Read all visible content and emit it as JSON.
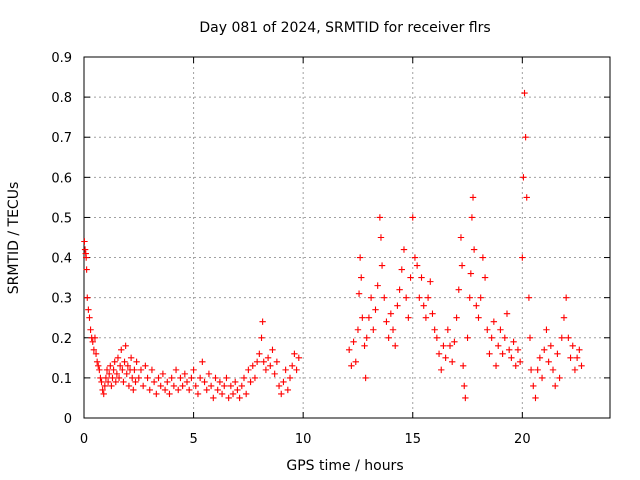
{
  "chart_data": {
    "type": "scatter",
    "title": "Day 081 of 2024, SRMTID for receiver flrs",
    "xlabel": "GPS time / hours",
    "ylabel": "SRMTID / TECUs",
    "xlim": [
      0,
      24
    ],
    "ylim": [
      0,
      0.9
    ],
    "xticks": [
      0,
      5,
      10,
      15,
      20
    ],
    "yticks": [
      0,
      0.1,
      0.2,
      0.3,
      0.4,
      0.5,
      0.6,
      0.7,
      0.8,
      0.9
    ],
    "xtick_labels": [
      "0",
      "5",
      "10",
      "15",
      "20"
    ],
    "ytick_labels": [
      "0",
      "0.1",
      "0.2",
      "0.3",
      "0.4",
      "0.5",
      "0.6",
      "0.7",
      "0.8",
      "0.9"
    ],
    "grid": true,
    "marker": "+",
    "color": "#ff0000",
    "series": [
      {
        "name": "SRMTID",
        "points": [
          [
            0.02,
            0.44
          ],
          [
            0.05,
            0.42
          ],
          [
            0.08,
            0.41
          ],
          [
            0.1,
            0.4
          ],
          [
            0.12,
            0.37
          ],
          [
            0.15,
            0.3
          ],
          [
            0.2,
            0.27
          ],
          [
            0.25,
            0.25
          ],
          [
            0.3,
            0.22
          ],
          [
            0.35,
            0.2
          ],
          [
            0.4,
            0.19
          ],
          [
            0.45,
            0.17
          ],
          [
            0.5,
            0.2
          ],
          [
            0.55,
            0.16
          ],
          [
            0.6,
            0.14
          ],
          [
            0.65,
            0.13
          ],
          [
            0.7,
            0.12
          ],
          [
            0.75,
            0.1
          ],
          [
            0.8,
            0.09
          ],
          [
            0.85,
            0.07
          ],
          [
            0.9,
            0.06
          ],
          [
            0.95,
            0.08
          ],
          [
            1.0,
            0.1
          ],
          [
            1.05,
            0.12
          ],
          [
            1.1,
            0.09
          ],
          [
            1.15,
            0.11
          ],
          [
            1.2,
            0.13
          ],
          [
            1.25,
            0.08
          ],
          [
            1.3,
            0.1
          ],
          [
            1.35,
            0.12
          ],
          [
            1.4,
            0.14
          ],
          [
            1.45,
            0.09
          ],
          [
            1.5,
            0.11
          ],
          [
            1.55,
            0.15
          ],
          [
            1.6,
            0.1
          ],
          [
            1.65,
            0.13
          ],
          [
            1.7,
            0.17
          ],
          [
            1.75,
            0.12
          ],
          [
            1.8,
            0.09
          ],
          [
            1.85,
            0.14
          ],
          [
            1.9,
            0.18
          ],
          [
            1.95,
            0.11
          ],
          [
            2.0,
            0.13
          ],
          [
            2.05,
            0.08
          ],
          [
            2.1,
            0.12
          ],
          [
            2.15,
            0.15
          ],
          [
            2.2,
            0.1
          ],
          [
            2.25,
            0.07
          ],
          [
            2.3,
            0.12
          ],
          [
            2.35,
            0.09
          ],
          [
            2.4,
            0.14
          ],
          [
            2.5,
            0.1
          ],
          [
            2.6,
            0.12
          ],
          [
            2.7,
            0.08
          ],
          [
            2.8,
            0.13
          ],
          [
            2.9,
            0.1
          ],
          [
            3.0,
            0.07
          ],
          [
            3.1,
            0.12
          ],
          [
            3.2,
            0.09
          ],
          [
            3.3,
            0.06
          ],
          [
            3.4,
            0.1
          ],
          [
            3.5,
            0.08
          ],
          [
            3.6,
            0.11
          ],
          [
            3.7,
            0.07
          ],
          [
            3.8,
            0.09
          ],
          [
            3.9,
            0.06
          ],
          [
            4.0,
            0.1
          ],
          [
            4.1,
            0.08
          ],
          [
            4.2,
            0.12
          ],
          [
            4.3,
            0.07
          ],
          [
            4.4,
            0.1
          ],
          [
            4.5,
            0.08
          ],
          [
            4.6,
            0.11
          ],
          [
            4.7,
            0.09
          ],
          [
            4.8,
            0.07
          ],
          [
            4.9,
            0.1
          ],
          [
            5.0,
            0.12
          ],
          [
            5.1,
            0.08
          ],
          [
            5.2,
            0.06
          ],
          [
            5.3,
            0.1
          ],
          [
            5.4,
            0.14
          ],
          [
            5.5,
            0.09
          ],
          [
            5.6,
            0.07
          ],
          [
            5.7,
            0.11
          ],
          [
            5.8,
            0.08
          ],
          [
            5.9,
            0.05
          ],
          [
            6.0,
            0.1
          ],
          [
            6.1,
            0.07
          ],
          [
            6.2,
            0.09
          ],
          [
            6.3,
            0.06
          ],
          [
            6.4,
            0.08
          ],
          [
            6.5,
            0.1
          ],
          [
            6.6,
            0.05
          ],
          [
            6.7,
            0.08
          ],
          [
            6.8,
            0.06
          ],
          [
            6.9,
            0.09
          ],
          [
            7.0,
            0.07
          ],
          [
            7.1,
            0.05
          ],
          [
            7.2,
            0.08
          ],
          [
            7.3,
            0.1
          ],
          [
            7.4,
            0.06
          ],
          [
            7.5,
            0.12
          ],
          [
            7.6,
            0.09
          ],
          [
            7.7,
            0.13
          ],
          [
            7.8,
            0.1
          ],
          [
            7.9,
            0.14
          ],
          [
            8.0,
            0.16
          ],
          [
            8.1,
            0.2
          ],
          [
            8.15,
            0.24
          ],
          [
            8.2,
            0.14
          ],
          [
            8.3,
            0.12
          ],
          [
            8.4,
            0.15
          ],
          [
            8.5,
            0.13
          ],
          [
            8.6,
            0.17
          ],
          [
            8.7,
            0.11
          ],
          [
            8.8,
            0.14
          ],
          [
            8.9,
            0.08
          ],
          [
            9.0,
            0.06
          ],
          [
            9.1,
            0.09
          ],
          [
            9.2,
            0.12
          ],
          [
            9.3,
            0.07
          ],
          [
            9.4,
            0.1
          ],
          [
            9.5,
            0.13
          ],
          [
            9.6,
            0.16
          ],
          [
            9.7,
            0.12
          ],
          [
            9.8,
            0.15
          ],
          [
            12.1,
            0.17
          ],
          [
            12.2,
            0.13
          ],
          [
            12.3,
            0.19
          ],
          [
            12.4,
            0.14
          ],
          [
            12.5,
            0.22
          ],
          [
            12.55,
            0.31
          ],
          [
            12.6,
            0.4
          ],
          [
            12.65,
            0.35
          ],
          [
            12.7,
            0.25
          ],
          [
            12.8,
            0.18
          ],
          [
            12.85,
            0.1
          ],
          [
            12.9,
            0.2
          ],
          [
            13.0,
            0.25
          ],
          [
            13.1,
            0.3
          ],
          [
            13.2,
            0.22
          ],
          [
            13.3,
            0.27
          ],
          [
            13.4,
            0.33
          ],
          [
            13.5,
            0.5
          ],
          [
            13.55,
            0.45
          ],
          [
            13.6,
            0.38
          ],
          [
            13.7,
            0.3
          ],
          [
            13.8,
            0.24
          ],
          [
            13.9,
            0.2
          ],
          [
            14.0,
            0.26
          ],
          [
            14.1,
            0.22
          ],
          [
            14.2,
            0.18
          ],
          [
            14.3,
            0.28
          ],
          [
            14.4,
            0.32
          ],
          [
            14.5,
            0.37
          ],
          [
            14.6,
            0.42
          ],
          [
            14.7,
            0.3
          ],
          [
            14.8,
            0.25
          ],
          [
            14.9,
            0.35
          ],
          [
            15.0,
            0.5
          ],
          [
            15.1,
            0.4
          ],
          [
            15.2,
            0.38
          ],
          [
            15.3,
            0.3
          ],
          [
            15.4,
            0.35
          ],
          [
            15.5,
            0.28
          ],
          [
            15.6,
            0.25
          ],
          [
            15.7,
            0.3
          ],
          [
            15.8,
            0.34
          ],
          [
            15.9,
            0.26
          ],
          [
            16.0,
            0.22
          ],
          [
            16.1,
            0.2
          ],
          [
            16.2,
            0.16
          ],
          [
            16.3,
            0.12
          ],
          [
            16.4,
            0.18
          ],
          [
            16.5,
            0.15
          ],
          [
            16.6,
            0.22
          ],
          [
            16.7,
            0.18
          ],
          [
            16.8,
            0.14
          ],
          [
            16.9,
            0.19
          ],
          [
            17.0,
            0.25
          ],
          [
            17.1,
            0.32
          ],
          [
            17.2,
            0.45
          ],
          [
            17.25,
            0.38
          ],
          [
            17.3,
            0.13
          ],
          [
            17.35,
            0.08
          ],
          [
            17.4,
            0.05
          ],
          [
            17.5,
            0.2
          ],
          [
            17.6,
            0.3
          ],
          [
            17.65,
            0.36
          ],
          [
            17.7,
            0.5
          ],
          [
            17.75,
            0.55
          ],
          [
            17.8,
            0.42
          ],
          [
            17.9,
            0.28
          ],
          [
            18.0,
            0.25
          ],
          [
            18.1,
            0.3
          ],
          [
            18.2,
            0.4
          ],
          [
            18.3,
            0.35
          ],
          [
            18.4,
            0.22
          ],
          [
            18.5,
            0.16
          ],
          [
            18.6,
            0.2
          ],
          [
            18.7,
            0.24
          ],
          [
            18.8,
            0.13
          ],
          [
            18.9,
            0.18
          ],
          [
            19.0,
            0.22
          ],
          [
            19.1,
            0.16
          ],
          [
            19.2,
            0.2
          ],
          [
            19.3,
            0.26
          ],
          [
            19.4,
            0.17
          ],
          [
            19.5,
            0.15
          ],
          [
            19.6,
            0.19
          ],
          [
            19.7,
            0.13
          ],
          [
            19.8,
            0.17
          ],
          [
            19.9,
            0.14
          ],
          [
            20.0,
            0.4
          ],
          [
            20.05,
            0.6
          ],
          [
            20.1,
            0.81
          ],
          [
            20.15,
            0.7
          ],
          [
            20.2,
            0.55
          ],
          [
            20.3,
            0.3
          ],
          [
            20.35,
            0.2
          ],
          [
            20.4,
            0.12
          ],
          [
            20.5,
            0.08
          ],
          [
            20.6,
            0.05
          ],
          [
            20.7,
            0.12
          ],
          [
            20.8,
            0.15
          ],
          [
            20.9,
            0.1
          ],
          [
            21.0,
            0.17
          ],
          [
            21.1,
            0.22
          ],
          [
            21.2,
            0.14
          ],
          [
            21.3,
            0.18
          ],
          [
            21.4,
            0.12
          ],
          [
            21.5,
            0.08
          ],
          [
            21.6,
            0.16
          ],
          [
            21.7,
            0.1
          ],
          [
            21.8,
            0.2
          ],
          [
            21.9,
            0.25
          ],
          [
            22.0,
            0.3
          ],
          [
            22.1,
            0.2
          ],
          [
            22.2,
            0.15
          ],
          [
            22.3,
            0.18
          ],
          [
            22.4,
            0.12
          ],
          [
            22.5,
            0.15
          ],
          [
            22.6,
            0.17
          ],
          [
            22.7,
            0.13
          ]
        ]
      }
    ]
  }
}
